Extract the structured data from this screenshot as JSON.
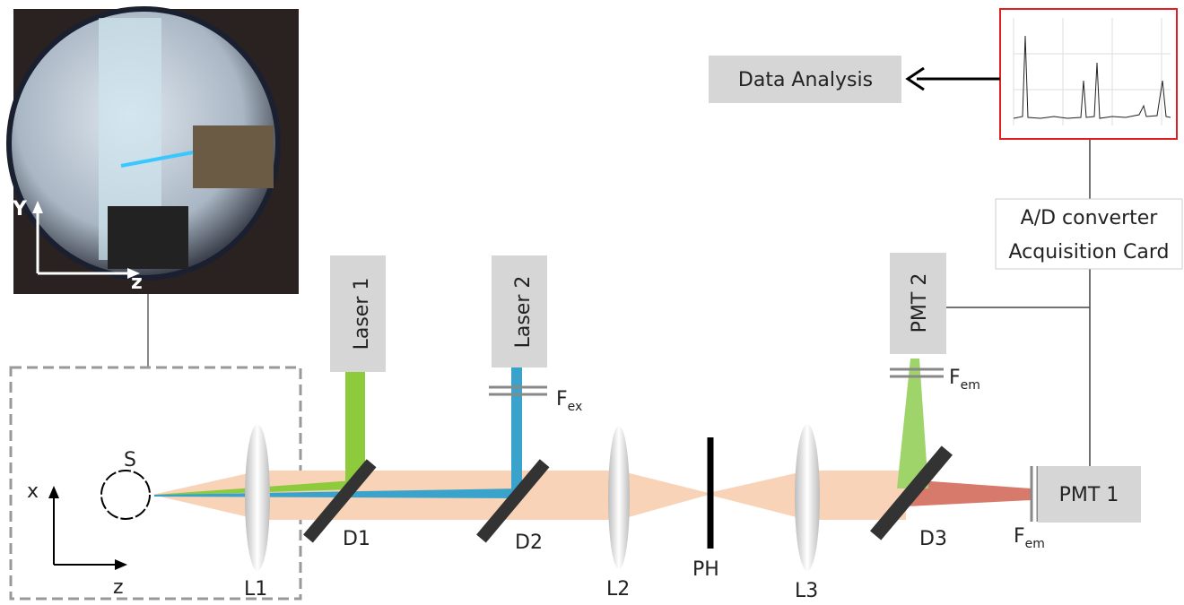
{
  "photo": {
    "axis_vertical": "Y",
    "axis_horizontal": "z"
  },
  "setup": {
    "axis_vertical": "x",
    "axis_horizontal": "z",
    "sample": "S"
  },
  "components": {
    "laser1": "Laser 1",
    "laser2": "Laser 2",
    "pmt1": "PMT 1",
    "pmt2": "PMT 2",
    "d1": "D1",
    "d2": "D2",
    "d3": "D3",
    "l1": "L1",
    "l2": "L2",
    "l3": "L3",
    "ph": "PH"
  },
  "filters": {
    "ex": {
      "base": "F",
      "sub": "ex"
    },
    "em_pmt2": {
      "base": "F",
      "sub": "em"
    },
    "em_pmt1": {
      "base": "F",
      "sub": "em"
    }
  },
  "acquisition": {
    "line1": "A/D converter",
    "line2": "Acquisition Card"
  },
  "analysis": "Data Analysis"
}
